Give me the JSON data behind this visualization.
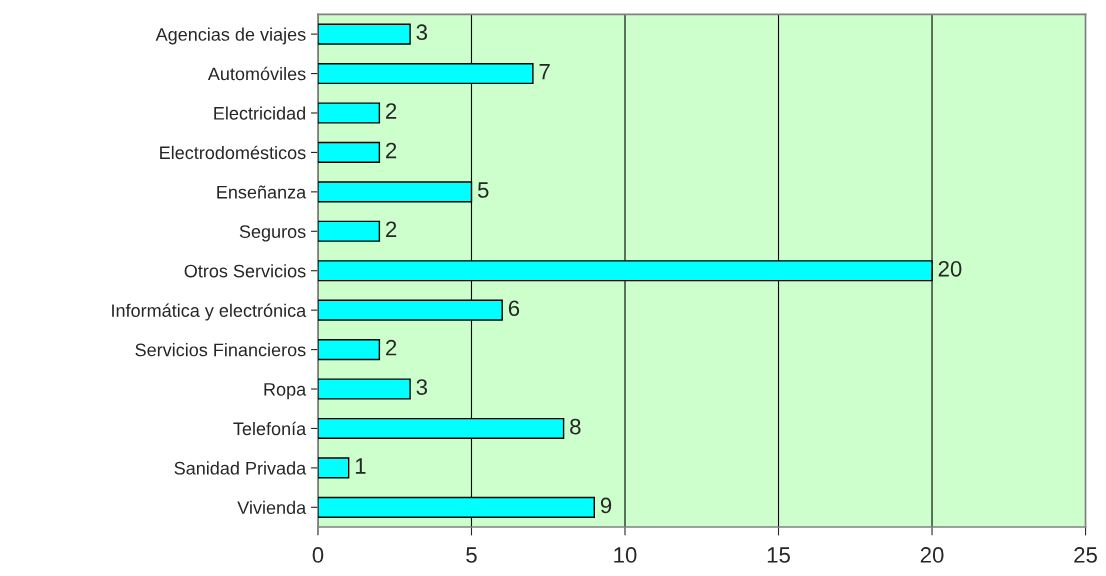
{
  "chart_data": {
    "type": "bar",
    "orientation": "horizontal",
    "categories": [
      "Agencias de viajes",
      "Automóviles",
      "Electricidad",
      "Electrodomésticos",
      "Enseñanza",
      "Seguros",
      "Otros Servicios",
      "Informática y electrónica",
      "Servicios Financieros",
      "Ropa",
      "Telefonía",
      "Sanidad Privada",
      "Vivienda"
    ],
    "values": [
      3,
      7,
      2,
      2,
      5,
      2,
      20,
      6,
      2,
      3,
      8,
      1,
      9
    ],
    "color": "#00ffff",
    "xlim": [
      0,
      25
    ],
    "xticks": [
      0,
      5,
      10,
      15,
      20,
      25
    ],
    "grid": "x",
    "data_labels": true
  }
}
